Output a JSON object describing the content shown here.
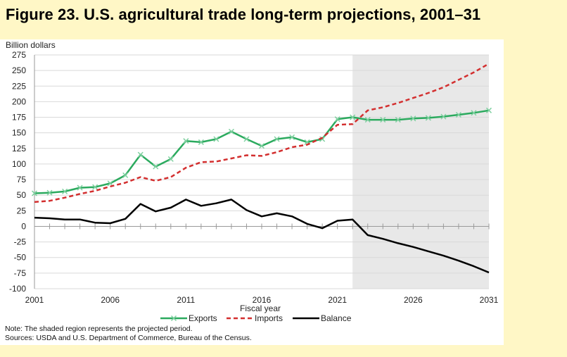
{
  "title": "Figure 23. U.S. agricultural trade long-term projections, 2001–31",
  "note": "Note: The shaded region represents the projected period.",
  "sources": "Sources: USDA and U.S. Department of Commerce, Bureau of the Census.",
  "chart_data": {
    "type": "line",
    "ylabel": "Billion dollars",
    "xlabel": "Fiscal year",
    "ylim": [
      -100,
      275
    ],
    "xlim": [
      2001,
      2031
    ],
    "y_ticks": [
      275,
      250,
      225,
      200,
      175,
      150,
      125,
      100,
      75,
      50,
      25,
      0,
      -25,
      -50,
      -75,
      -100
    ],
    "x_tick_labels": [
      "2001",
      "2006",
      "2011",
      "2016",
      "2021",
      "2026",
      "2031"
    ],
    "projected_region": [
      2022,
      2031
    ],
    "grid": true,
    "legend_position": "bottom",
    "x": [
      2001,
      2002,
      2003,
      2004,
      2005,
      2006,
      2007,
      2008,
      2009,
      2010,
      2011,
      2012,
      2013,
      2014,
      2015,
      2016,
      2017,
      2018,
      2019,
      2020,
      2021,
      2022,
      2023,
      2024,
      2025,
      2026,
      2027,
      2028,
      2029,
      2030,
      2031
    ],
    "series": [
      {
        "name": "Exports",
        "color": "#2BAA5E",
        "style": "solid-x",
        "values": [
          53,
          54,
          56,
          62,
          63,
          69,
          82,
          115,
          96,
          108,
          137,
          135,
          140,
          152,
          140,
          129,
          140,
          143,
          135,
          140,
          172,
          175,
          171,
          171,
          171,
          173,
          174,
          176,
          179,
          182,
          186
        ]
      },
      {
        "name": "Imports",
        "color": "#D32F2F",
        "style": "dashed",
        "values": [
          39,
          41,
          46,
          52,
          57,
          64,
          70,
          79,
          73,
          79,
          94,
          103,
          104,
          109,
          114,
          113,
          119,
          127,
          131,
          142,
          163,
          164,
          186,
          191,
          198,
          206,
          214,
          223,
          235,
          247,
          261
        ]
      },
      {
        "name": "Balance",
        "color": "#000000",
        "style": "solid",
        "values": [
          14,
          13,
          11,
          11,
          6,
          5,
          12,
          36,
          24,
          30,
          43,
          33,
          37,
          43,
          26,
          16,
          21,
          16,
          4,
          -3,
          9,
          11,
          -14,
          -20,
          -27,
          -33,
          -40,
          -47,
          -55,
          -64,
          -74
        ]
      }
    ]
  }
}
